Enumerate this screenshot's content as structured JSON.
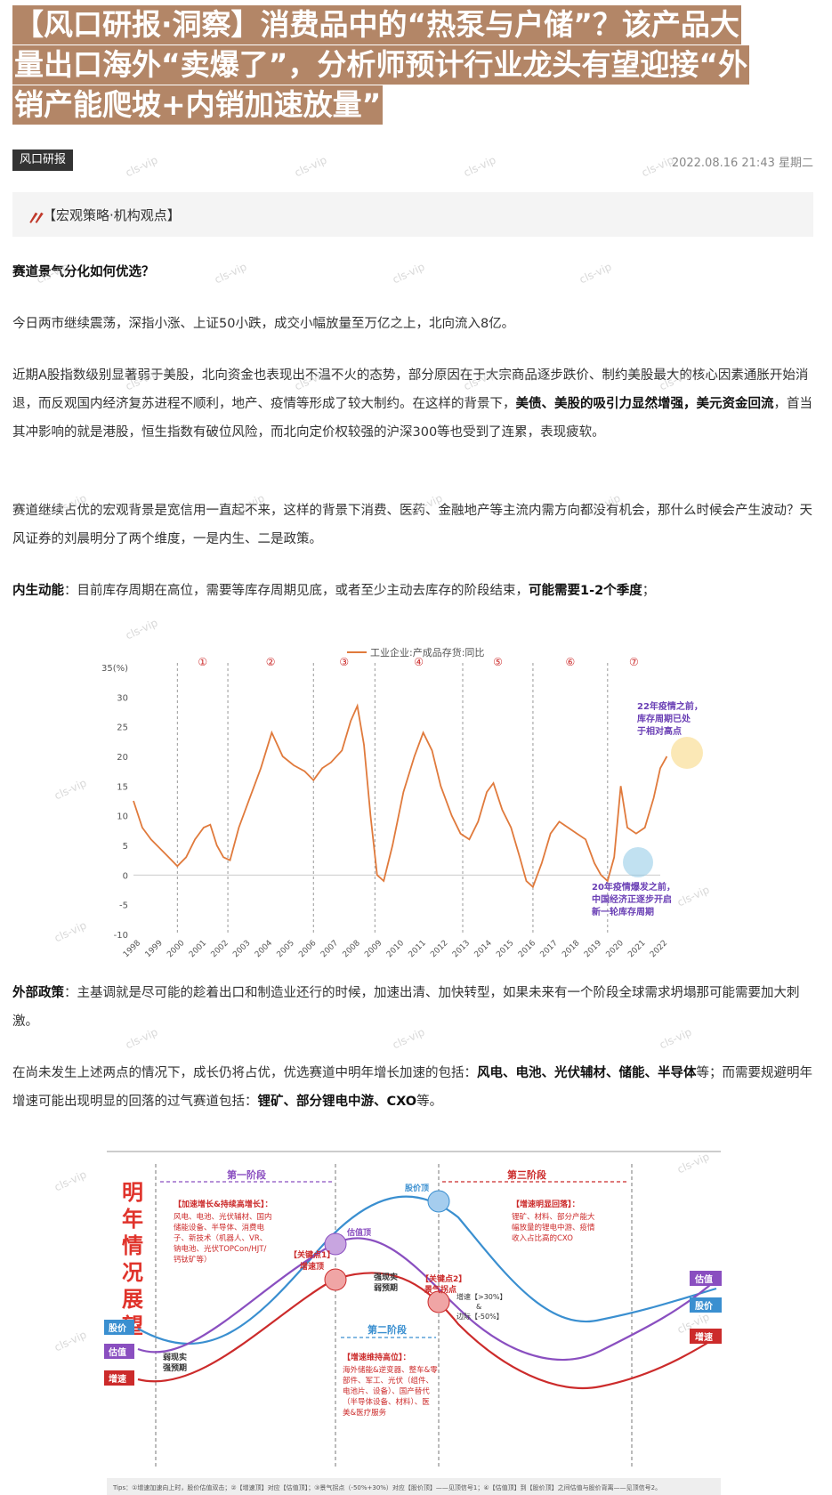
{
  "headline": {
    "line1": "【风口研报·洞察】消费品中的“热泵与户储”？该产品大",
    "line2": "量出口海外“卖爆了”，分析师预计行业龙头有望迎接“外",
    "line3": "销产能爬坡+内销加速放量”"
  },
  "meta": {
    "tag": "风口研报",
    "date": "2022.08.16 21:43 星期二"
  },
  "quote": {
    "mark": "〃",
    "text": "【宏观策略·机构观点】"
  },
  "sections": {
    "q1": "赛道景气分化如何优选？",
    "p1": "今日两市继续震荡，深指小涨、上证50小跌，成交小幅放量至万亿之上，北向流入8亿。",
    "p2a": "近期A股指数级别显著弱于美股，北向资金也表现出不温不火的态势，部分原因在于大宗商品逐步跌价、制约美股最大的核心因素通胀开始消退，而反观国内经济复苏进程不顺利，地产、疫情等形成了较大制约。在这样的背景下，",
    "p2b": "美债、美股的吸引力显然增强，美元资金回流",
    "p2c": "，首当其冲影响的就是港股，恒生指数有破位风险，而北向定价权较强的沪深300等也受到了连累，表现疲软。",
    "p3": "赛道继续占优的宏观背景是宽信用一直起不来，这样的背景下消费、医药、金融地产等主流内需方向都没有机会，那什么时候会产生波动？天风证券的刘晨明分了两个维度，一是内生、二是政策。",
    "p4a": "内生动能",
    "p4b": "：目前库存周期在高位，需要等库存周期见底，或者至少主动去库存的阶段结束，",
    "p4c": "可能需要1-2个季度",
    "p4d": "；",
    "p5a": "外部政策",
    "p5b": "：主基调就是尽可能的趁着出口和制造业还行的时候，加速出清、加快转型，如果未来有一个阶段全球需求坍塌那可能需要加大刺激。",
    "p6a": "在尚未发生上述两点的情况下，成长仍将占优，优选赛道中明年增长加速的包括：",
    "p6b": "风电、电池、光伏辅材、储能、半导体",
    "p6c": "等；而需要规避明年增速可能出现明显的回落的过气赛道包括：",
    "p6d": "锂矿、部分锂电中游、CXO",
    "p6e": "等。"
  },
  "chart_data": [
    {
      "type": "line",
      "legend": "工业企业:产成品存货:同比",
      "ylabel": "35(%)",
      "ylim": [
        -10,
        35
      ],
      "yticks": [
        "35(%)",
        "30",
        "25",
        "20",
        "15",
        "10",
        "5",
        "0",
        "-5",
        "-10"
      ],
      "xticks": [
        "1998",
        "1999",
        "2000",
        "2001",
        "2002",
        "2003",
        "2004",
        "2005",
        "2006",
        "2007",
        "2008",
        "2009",
        "2010",
        "2011",
        "2012",
        "2013",
        "2014",
        "2015",
        "2016",
        "2017",
        "2018",
        "2019",
        "2020",
        "2021",
        "2022"
      ],
      "cycles": [
        "①",
        "②",
        "③",
        "④",
        "⑤",
        "⑥",
        "⑦"
      ],
      "cycle_boundaries": [
        2000.0,
        2002.3,
        2006.2,
        2009.0,
        2013.0,
        2016.2,
        2019.6
      ],
      "annotation_top": [
        "22年疫情之前，",
        "库存周期已处",
        "于相对高点"
      ],
      "annotation_bottom": [
        "20年疫情爆发之前，",
        "中国经济正逐步开启",
        "新一轮库存周期"
      ],
      "series": [
        {
          "name": "工业企业:产成品存货:同比",
          "color": "#e07a3c",
          "points": [
            [
              1998.0,
              12.5
            ],
            [
              1998.4,
              8
            ],
            [
              1998.8,
              6
            ],
            [
              1999.2,
              4.5
            ],
            [
              1999.6,
              3
            ],
            [
              2000.0,
              1.5
            ],
            [
              2000.4,
              3
            ],
            [
              2000.8,
              6
            ],
            [
              2001.2,
              8
            ],
            [
              2001.5,
              8.5
            ],
            [
              2001.8,
              5
            ],
            [
              2002.1,
              3
            ],
            [
              2002.4,
              2.5
            ],
            [
              2002.8,
              8
            ],
            [
              2003.3,
              13
            ],
            [
              2003.8,
              18
            ],
            [
              2004.3,
              24
            ],
            [
              2004.8,
              20
            ],
            [
              2005.3,
              18.5
            ],
            [
              2005.8,
              17.5
            ],
            [
              2006.2,
              16
            ],
            [
              2006.6,
              18
            ],
            [
              2007.0,
              19
            ],
            [
              2007.5,
              21
            ],
            [
              2007.9,
              26
            ],
            [
              2008.2,
              28.5
            ],
            [
              2008.5,
              22
            ],
            [
              2008.8,
              10
            ],
            [
              2009.1,
              0
            ],
            [
              2009.4,
              -1
            ],
            [
              2009.8,
              5
            ],
            [
              2010.3,
              14
            ],
            [
              2010.8,
              20
            ],
            [
              2011.2,
              24
            ],
            [
              2011.6,
              21
            ],
            [
              2012.0,
              15
            ],
            [
              2012.5,
              10
            ],
            [
              2012.9,
              7
            ],
            [
              2013.3,
              6
            ],
            [
              2013.7,
              9
            ],
            [
              2014.1,
              14
            ],
            [
              2014.4,
              15.5
            ],
            [
              2014.8,
              11
            ],
            [
              2015.2,
              8
            ],
            [
              2015.6,
              3
            ],
            [
              2015.9,
              -1
            ],
            [
              2016.2,
              -2
            ],
            [
              2016.6,
              2
            ],
            [
              2017.0,
              7
            ],
            [
              2017.4,
              9
            ],
            [
              2017.8,
              8
            ],
            [
              2018.2,
              7
            ],
            [
              2018.6,
              6
            ],
            [
              2019.0,
              2
            ],
            [
              2019.3,
              0
            ],
            [
              2019.6,
              -1
            ],
            [
              2019.9,
              3
            ],
            [
              2020.2,
              15
            ],
            [
              2020.5,
              8
            ],
            [
              2020.9,
              7
            ],
            [
              2021.3,
              8
            ],
            [
              2021.7,
              13
            ],
            [
              2022.0,
              18
            ],
            [
              2022.3,
              20
            ]
          ]
        }
      ]
    },
    {
      "type": "line",
      "side_title": "明年情况展望",
      "phases": [
        "第一阶段",
        "第二阶段",
        "第三阶段"
      ],
      "labels_left": [
        "股价",
        "估值",
        "增速"
      ],
      "labels_right": [
        "估值",
        "股价",
        "增速"
      ],
      "markers": [
        "估值顶",
        "股价顶",
        "【关键点1】",
        "增速顶",
        "【关键点2】",
        "景气拐点",
        "强现实",
        "弱预期",
        "弱现实",
        "强预期"
      ],
      "box1_title": "【加速增长&持续高增长】：",
      "box1_text": [
        "风电、电池、光伏辅材、国内",
        "储能设备、半导体、消费电",
        "子、新技术（机器人、VR、",
        "钠电池、光伏TOPCon/HJT/",
        "钙钛矿等）"
      ],
      "box2_title": "【增速维持高位】：",
      "box2_text": [
        "海外储能&逆变器、整车&零",
        "部件、军工、光伏（组件、",
        "电池片、设备）、国产替代",
        "（半导体设备、材料）、医",
        "美&医疗服务"
      ],
      "box3_title": "【增速明显回落】：",
      "box3_text": [
        "锂矿、材料、部分产能大",
        "幅放量的锂电中游、疫情",
        "收入占比高的CXO"
      ],
      "box4_text": [
        "增速【>30%】",
        "&",
        "边际【-50%】"
      ],
      "tips": "Tips：①增速加速向上时，股价估值双击；②【增速顶】对应【估值顶】；③景气拐点（-50%+30%）对应【股价顶】——见顶信号1；④【估值顶】到【股价顶】之间估值与股价背离——见顶信号2。",
      "series": [
        {
          "name": "股价",
          "color": "#3a8fd0"
        },
        {
          "name": "估值",
          "color": "#8a4fc0"
        },
        {
          "name": "增速",
          "color": "#cc2b2b"
        }
      ]
    }
  ],
  "watermark": "cls-vip"
}
